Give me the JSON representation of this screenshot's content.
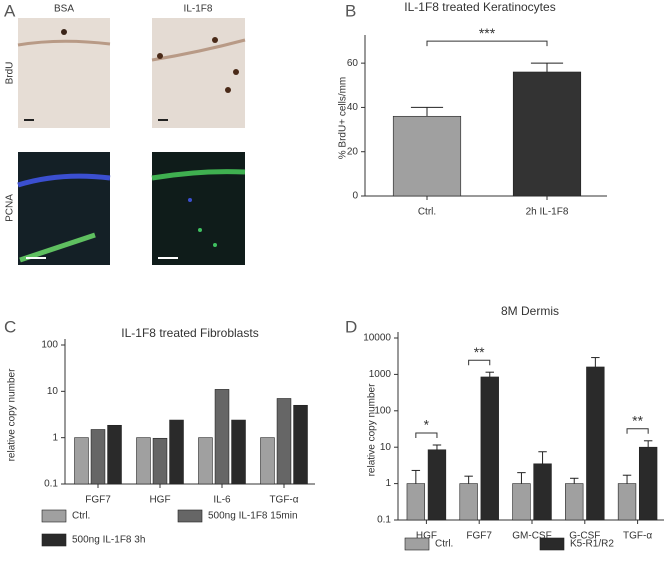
{
  "panel_labels": [
    "A",
    "B",
    "C",
    "D"
  ],
  "images": {
    "columns": [
      "BSA",
      "IL-1F8"
    ],
    "rows": [
      "BrdU",
      "PCNA"
    ]
  },
  "chart_data": [
    {
      "type": "bar",
      "title": "IL-1F8 treated Keratinocytes",
      "y_label": "% BrdU+ cells/mm",
      "categories": [
        "Ctrl.",
        "2h IL-1F8"
      ],
      "values": [
        36,
        56
      ],
      "errors": [
        4,
        4
      ],
      "colors": [
        "#a0a0a0",
        "#333333"
      ],
      "ylim": [
        0,
        70
      ],
      "yticks": [
        0,
        20,
        40,
        60
      ],
      "annotations": [
        {
          "text": "***",
          "categories": [
            "Ctrl.",
            "2h IL-1F8"
          ]
        }
      ]
    },
    {
      "type": "bar",
      "title": "IL-1F8 treated Fibroblasts",
      "y_label": "relative copy number",
      "categories": [
        "FGF7",
        "HGF",
        "IL-6",
        "TGF-α"
      ],
      "log_scale": true,
      "ylim": [
        0.1,
        100
      ],
      "yticks": [
        0.1,
        1,
        10,
        100
      ],
      "series": [
        {
          "name": "Ctrl.",
          "color": "#a0a0a0",
          "values": [
            1,
            1,
            1,
            1
          ]
        },
        {
          "name": "500ng IL-1F8 15min",
          "color": "#666666",
          "values": [
            1.5,
            0.97,
            11,
            7
          ]
        },
        {
          "name": "500ng IL-1F8 3h",
          "color": "#2a2a2a",
          "values": [
            1.85,
            2.4,
            2.4,
            5
          ]
        }
      ]
    },
    {
      "type": "bar",
      "title": "8M Dermis",
      "y_label": "relative copy number",
      "categories": [
        "HGF",
        "FGF7",
        "GM-CSF",
        "G-CSF",
        "TGF-α"
      ],
      "log_scale": true,
      "ylim": [
        0.1,
        10000
      ],
      "yticks": [
        0.1,
        1,
        10,
        100,
        1000,
        10000
      ],
      "series": [
        {
          "name": "Ctrl.",
          "color": "#a0a0a0",
          "values": [
            1,
            1,
            1,
            1,
            1
          ],
          "errors": [
            1.3,
            0.6,
            1,
            0.4,
            0.7
          ]
        },
        {
          "name": "K5-R1/R2",
          "color": "#2a2a2a",
          "values": [
            8.5,
            850,
            3.5,
            1600,
            10
          ],
          "errors": [
            3,
            300,
            4,
            1300,
            5
          ]
        }
      ],
      "annotations": [
        {
          "text": "*",
          "categories": [
            "HGF"
          ]
        },
        {
          "text": "**",
          "categories": [
            "FGF7"
          ]
        },
        {
          "text": "**",
          "categories": [
            "TGF-α"
          ]
        }
      ]
    }
  ]
}
